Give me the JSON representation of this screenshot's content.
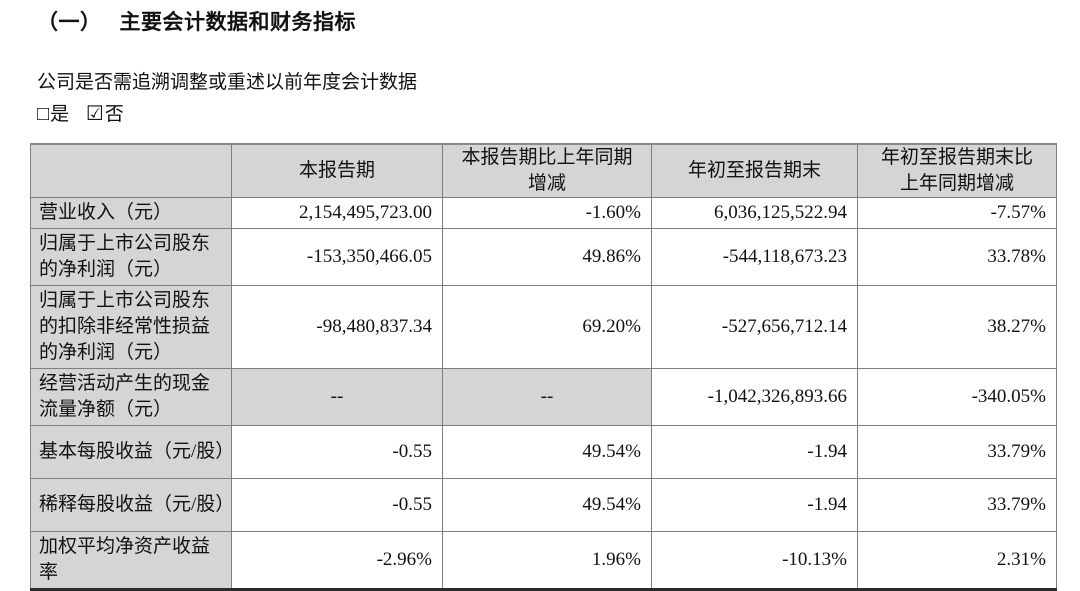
{
  "title": {
    "numbering": "（一）",
    "text": "主要会计数据和财务指标"
  },
  "question": "公司是否需追溯调整或重述以前年度会计数据",
  "checkboxes": [
    {
      "glyph": "□",
      "label": "是",
      "checked": false
    },
    {
      "glyph": "☑",
      "label": "否",
      "checked": true
    }
  ],
  "colors": {
    "shade": "#d5d5d5",
    "inner_border": "#7f7f7f",
    "table_top_border": "#8a8a8a",
    "table_bottom_border": "#2b2b2b"
  },
  "table": {
    "header": [
      "",
      "本报告期",
      "本报告期比上年同期增减",
      "年初至报告期末",
      "年初至报告期末比上年同期增减"
    ],
    "rows": [
      {
        "label": "营业收入（元）",
        "values": [
          "2,154,495,723.00",
          "-1.60%",
          "6,036,125,522.94",
          "-7.57%"
        ]
      },
      {
        "label": "归属于上市公司股东的净利润（元）",
        "values": [
          "-153,350,466.05",
          "49.86%",
          "-544,118,673.23",
          "33.78%"
        ]
      },
      {
        "label": "归属于上市公司股东的扣除非经常性损益的净利润（元）",
        "values": [
          "-98,480,837.34",
          "69.20%",
          "-527,656,712.14",
          "38.27%"
        ]
      },
      {
        "label": "经营活动产生的现金流量净额（元）",
        "values": [
          "--",
          "--",
          "-1,042,326,893.66",
          "-340.05%"
        ]
      },
      {
        "label": "基本每股收益（元/股）",
        "values": [
          "-0.55",
          "49.54%",
          "-1.94",
          "33.79%"
        ]
      },
      {
        "label": "稀释每股收益（元/股）",
        "values": [
          "-0.55",
          "49.54%",
          "-1.94",
          "33.79%"
        ]
      },
      {
        "label": "加权平均净资产收益率",
        "values": [
          "-2.96%",
          "1.96%",
          "-10.13%",
          "2.31%"
        ]
      }
    ]
  }
}
